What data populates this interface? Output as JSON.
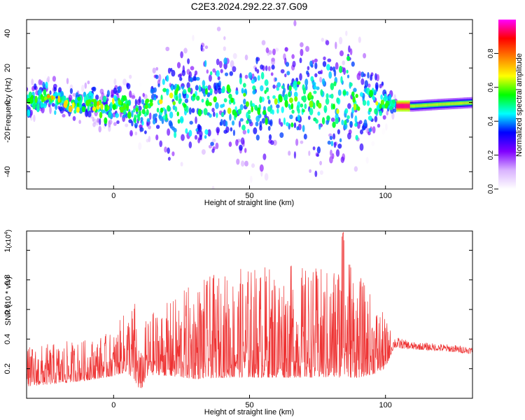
{
  "title": "C2E3.2024.292.22.37.G09",
  "chart_data": [
    {
      "type": "heatmap",
      "xlabel": "Height of straight line (km)",
      "ylabel": "Frequency (Hz)",
      "xlim": [
        -32,
        132
      ],
      "ylim": [
        -50,
        48
      ],
      "xticks": [
        "0",
        "50",
        "100"
      ],
      "xtick_values": [
        0,
        50,
        100
      ],
      "yticks": [
        "40",
        "20",
        "0",
        "-20",
        "-40"
      ],
      "ytick_values": [
        40,
        20,
        0,
        -20,
        -40
      ],
      "colorbar": {
        "label": "Normalized spectral amplitude",
        "range": [
          0,
          1
        ],
        "ticks": [
          "0.0",
          "0.2",
          "0.4",
          "0.6",
          "0.8"
        ],
        "tick_values": [
          0.0,
          0.2,
          0.4,
          0.6,
          0.8
        ],
        "colors": [
          "#ffffff",
          "#d9b3ff",
          "#8000ff",
          "#0000ff",
          "#00ffff",
          "#00ff00",
          "#ffff00",
          "#ff8000",
          "#ff0000",
          "#ff00ff"
        ]
      },
      "spread_profile": {
        "x": [
          -32,
          -25,
          -15,
          -5,
          5,
          10,
          15,
          20,
          30,
          40,
          50,
          60,
          70,
          80,
          85,
          90,
          95,
          100,
          103,
          106,
          110,
          120,
          132
        ],
        "half_width_hz": [
          10,
          9,
          8,
          9,
          14,
          12,
          22,
          30,
          32,
          33,
          33,
          33,
          34,
          38,
          40,
          33,
          22,
          10,
          5,
          3,
          3,
          3,
          3
        ]
      },
      "center_profile": {
        "x": [
          -32,
          -28,
          -24,
          -20,
          -16,
          -12,
          -8,
          -4,
          0,
          4,
          8,
          12,
          16,
          100,
          104,
          110,
          120,
          132
        ],
        "freq_hz": [
          0,
          2,
          3,
          2,
          -2,
          0,
          1,
          -4,
          -2,
          1,
          -7,
          -5,
          0,
          0,
          -2,
          -2,
          -1,
          0
        ]
      },
      "dense_band": {
        "x": [
          104,
          132
        ],
        "freq_hz": [
          -2,
          2
        ],
        "peak_amplitude": 0.95,
        "peak_x": 106
      }
    },
    {
      "type": "line",
      "xlabel": "Height of straight line (km)",
      "ylabel": "SNR (10 * v/v)",
      "multiplier_label": "(x10",
      "multiplier_exp": "4",
      "xlim": [
        -32,
        132
      ],
      "ylim": [
        0,
        1.13
      ],
      "xticks": [
        "0",
        "50",
        "100"
      ],
      "xtick_values": [
        0,
        50,
        100
      ],
      "yticks": [
        "0.2",
        "0.4",
        "0.6",
        "0.8",
        "1"
      ],
      "ytick_values": [
        0.2,
        0.4,
        0.6,
        0.8,
        1.0
      ],
      "color": "#ee3333",
      "series": [
        {
          "envelope_x": [
            -32,
            -20,
            -10,
            0,
            5,
            8,
            10,
            12,
            15,
            20,
            30,
            40,
            50,
            60,
            70,
            80,
            85,
            90,
            95,
            100,
            103,
            110,
            120,
            132
          ],
          "baseline": [
            0.08,
            0.1,
            0.12,
            0.15,
            0.18,
            0.1,
            0.05,
            0.14,
            0.16,
            0.15,
            0.13,
            0.14,
            0.14,
            0.14,
            0.14,
            0.14,
            0.14,
            0.14,
            0.16,
            0.2,
            0.34,
            0.33,
            0.32,
            0.3
          ],
          "peak": [
            0.35,
            0.38,
            0.4,
            0.45,
            0.62,
            0.68,
            0.3,
            0.55,
            0.6,
            0.65,
            0.8,
            0.85,
            0.9,
            0.92,
            0.9,
            0.88,
            1.15,
            0.85,
            0.7,
            0.55,
            0.42,
            0.38,
            0.37,
            0.35
          ]
        }
      ]
    }
  ]
}
